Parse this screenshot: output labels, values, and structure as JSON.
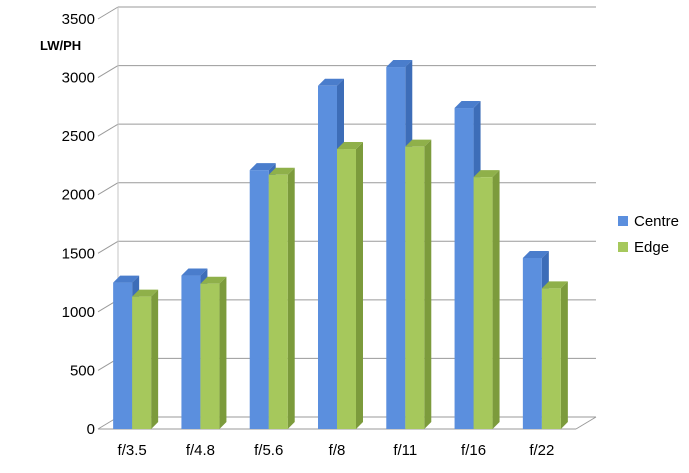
{
  "chart_data": {
    "type": "bar",
    "title": "",
    "xlabel": "",
    "ylabel": "LW/PH",
    "ylim": [
      0,
      3500
    ],
    "yticks": [
      0,
      500,
      1000,
      1500,
      2000,
      2500,
      3000,
      3500
    ],
    "grid": true,
    "style": "3d-clustered-column",
    "legend_position": "right",
    "categories": [
      "f/3.5",
      "f/4.8",
      "f/5.6",
      "f/8",
      "f/11",
      "f/16",
      "f/22"
    ],
    "series": [
      {
        "name": "Centre",
        "color": "#5b8fde",
        "side_color": "#3d6db8",
        "top_color": "#4a7dcc",
        "values": [
          1250,
          1310,
          2210,
          2930,
          3090,
          2740,
          1460
        ]
      },
      {
        "name": "Edge",
        "color": "#a6c85c",
        "side_color": "#7c9b3c",
        "top_color": "#8fb04a",
        "values": [
          1130,
          1240,
          2170,
          2390,
          2410,
          2150,
          1200
        ]
      }
    ]
  }
}
